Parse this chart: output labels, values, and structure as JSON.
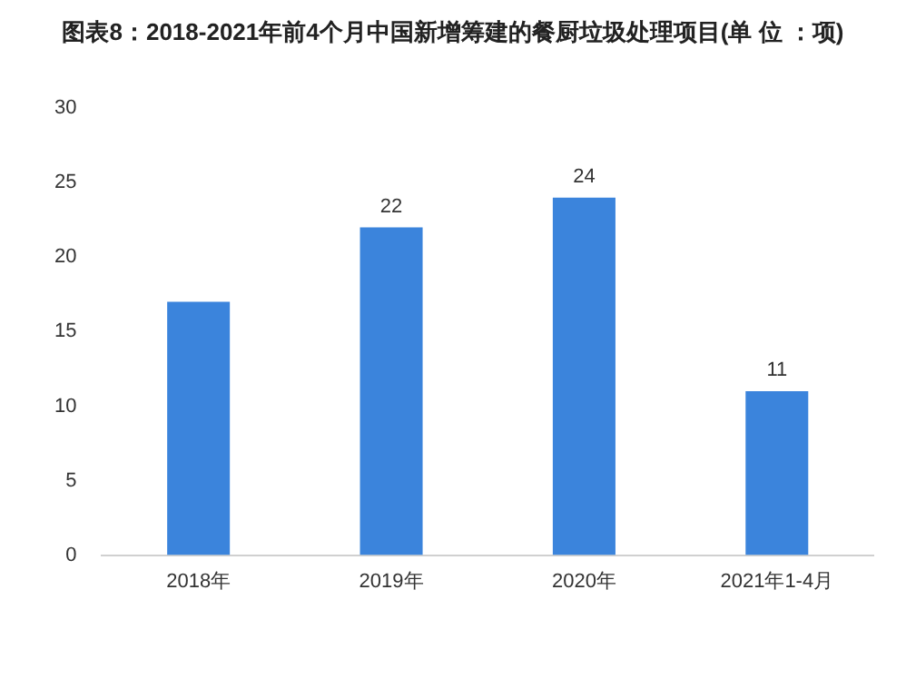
{
  "chart_data": {
    "type": "bar",
    "title": "图表8：2018-2021年前4个月中国新增筹建的餐厨垃圾处理项目(单 位 ：项)",
    "categories": [
      "2018年",
      "2019年",
      "2020年",
      "2021年1-4月"
    ],
    "values": [
      17,
      22,
      24,
      11
    ],
    "value_labels": [
      null,
      "22",
      "24",
      "11"
    ],
    "color": "#3b84dc",
    "ylim": [
      0,
      30
    ],
    "yticks": [
      0,
      5,
      10,
      15,
      20,
      25,
      30
    ],
    "grid": false,
    "legend": false
  }
}
